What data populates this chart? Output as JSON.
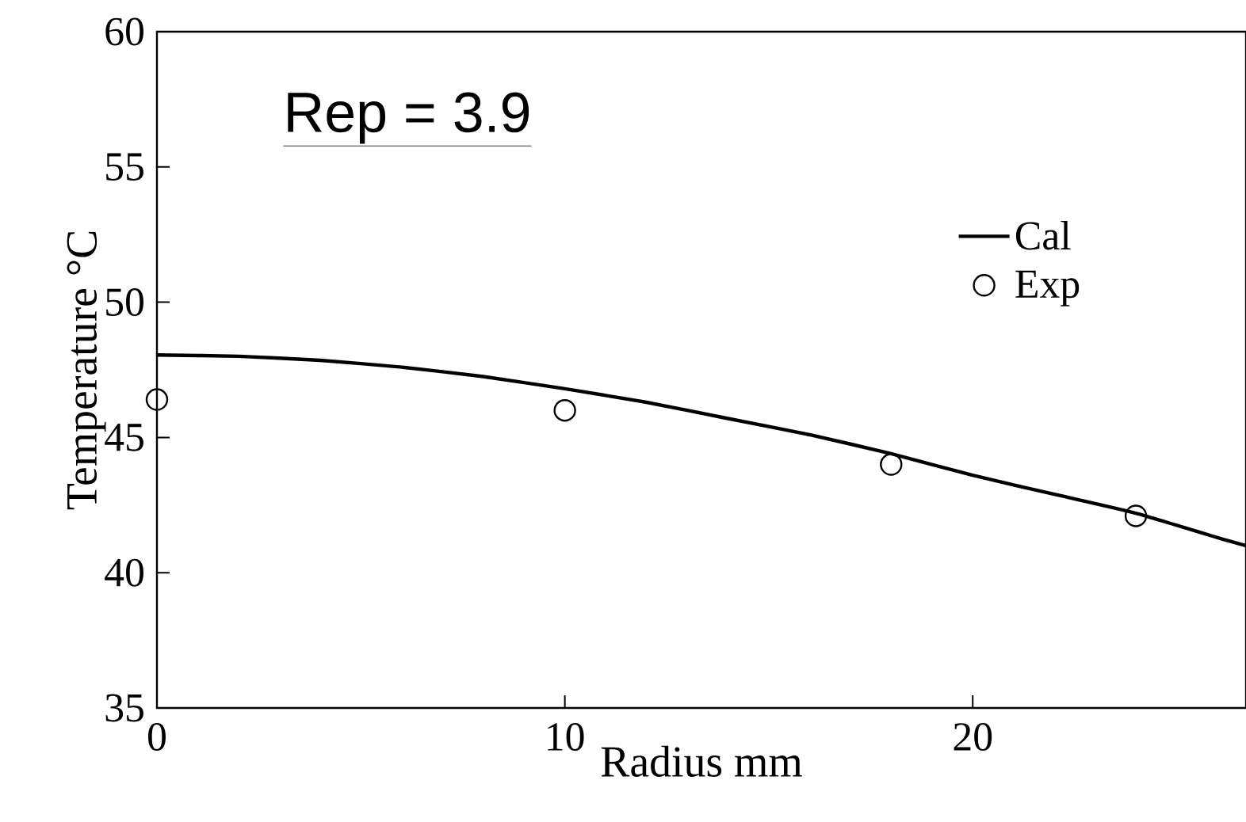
{
  "chart_data": {
    "type": "line",
    "xlabel": "Radius mm",
    "ylabel": "Temperature °C",
    "annotations": [
      "Rep = 3.9"
    ],
    "xlim": [
      0,
      26.7
    ],
    "ylim": [
      35,
      60
    ],
    "xticks": [
      0,
      10,
      20
    ],
    "yticks": [
      35,
      40,
      45,
      50,
      55,
      60
    ],
    "legend": "top right",
    "series": [
      {
        "name": "Cal",
        "type": "line",
        "color": "#000000",
        "marker": "none",
        "x": [
          0,
          2,
          4,
          6,
          8,
          10,
          12,
          14,
          16,
          18,
          20,
          22,
          24,
          26,
          26.7
        ],
        "values": [
          48.05,
          48.0,
          47.85,
          47.6,
          47.25,
          46.8,
          46.3,
          45.7,
          45.1,
          44.4,
          43.6,
          42.9,
          42.2,
          41.3,
          41.0
        ]
      },
      {
        "name": "Exp",
        "type": "scatter",
        "color": "#000000",
        "marker": "circle",
        "x": [
          0,
          10,
          18,
          24
        ],
        "values": [
          46.4,
          46.0,
          44.0,
          42.1
        ]
      }
    ]
  }
}
